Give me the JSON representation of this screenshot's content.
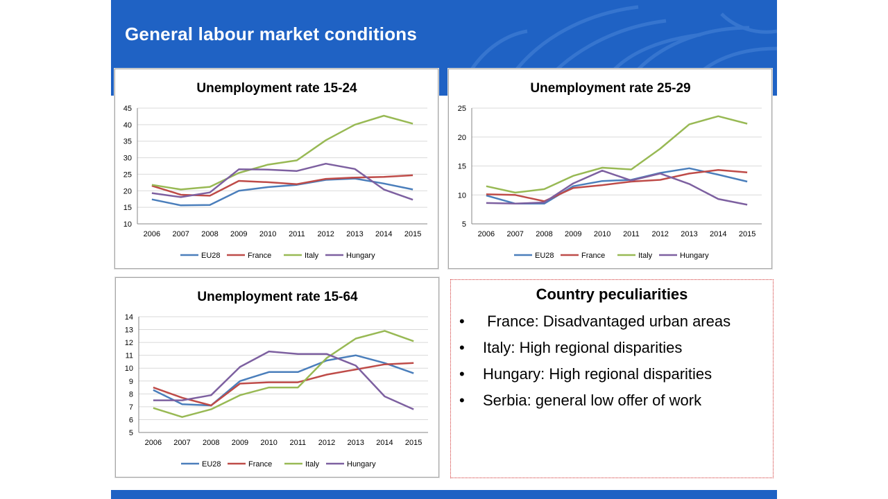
{
  "slide": {
    "title": "General labour market conditions"
  },
  "colors": {
    "header": "#1f62c4",
    "EU28": "#4a7ebb",
    "France": "#be4b48",
    "Italy": "#98b954",
    "Hungary": "#7d60a0"
  },
  "legend": [
    "EU28",
    "France",
    "Italy",
    "Hungary"
  ],
  "chart_data": [
    {
      "type": "line",
      "title": "Unemployment rate 15-24",
      "x": [
        "2006",
        "2007",
        "2008",
        "2009",
        "2010",
        "2011",
        "2012",
        "2013",
        "2014",
        "2015"
      ],
      "ylim": [
        10,
        45
      ],
      "yticks": [
        10,
        15,
        20,
        25,
        30,
        35,
        40,
        45
      ],
      "grid": true,
      "legend_position": "bottom",
      "series": [
        {
          "name": "EU28",
          "values": [
            17.4,
            15.6,
            15.7,
            20.0,
            21.1,
            21.8,
            23.3,
            23.7,
            22.2,
            20.4
          ]
        },
        {
          "name": "France",
          "values": [
            21.5,
            18.8,
            18.5,
            23.0,
            22.6,
            22.0,
            23.6,
            24.0,
            24.2,
            24.7
          ]
        },
        {
          "name": "Italy",
          "values": [
            21.8,
            20.4,
            21.2,
            25.4,
            27.9,
            29.2,
            35.3,
            40.0,
            42.7,
            40.3
          ]
        },
        {
          "name": "Hungary",
          "values": [
            19.3,
            18.1,
            19.5,
            26.5,
            26.4,
            26.0,
            28.2,
            26.6,
            20.4,
            17.3
          ]
        }
      ]
    },
    {
      "type": "line",
      "title": "Unemployment rate 25-29",
      "x": [
        "2006",
        "2007",
        "2008",
        "2009",
        "2010",
        "2011",
        "2012",
        "2013",
        "2014",
        "2015"
      ],
      "ylim": [
        5,
        25
      ],
      "yticks": [
        5,
        10,
        15,
        20,
        25
      ],
      "grid": true,
      "legend_position": "bottom",
      "series": [
        {
          "name": "EU28",
          "values": [
            9.9,
            8.5,
            8.5,
            11.5,
            12.4,
            12.6,
            13.8,
            14.6,
            13.5,
            12.3
          ]
        },
        {
          "name": "France",
          "values": [
            10.1,
            10.0,
            8.9,
            11.2,
            11.7,
            12.3,
            12.6,
            13.7,
            14.3,
            13.9
          ]
        },
        {
          "name": "Italy",
          "values": [
            11.5,
            10.4,
            11.0,
            13.3,
            14.7,
            14.4,
            18.0,
            22.2,
            23.6,
            22.3
          ]
        },
        {
          "name": "Hungary",
          "values": [
            8.6,
            8.5,
            8.7,
            12.0,
            14.2,
            12.5,
            13.7,
            11.9,
            9.3,
            8.3
          ]
        }
      ]
    },
    {
      "type": "line",
      "title": "Unemployment rate 15-64",
      "x": [
        "2006",
        "2007",
        "2008",
        "2009",
        "2010",
        "2011",
        "2012",
        "2013",
        "2014",
        "2015"
      ],
      "ylim": [
        5,
        14
      ],
      "yticks": [
        5,
        6,
        7,
        8,
        9,
        10,
        11,
        12,
        13,
        14
      ],
      "grid": true,
      "legend_position": "bottom",
      "series": [
        {
          "name": "EU28",
          "values": [
            8.3,
            7.2,
            7.1,
            9.0,
            9.7,
            9.7,
            10.6,
            11.0,
            10.4,
            9.6
          ]
        },
        {
          "name": "France",
          "values": [
            8.5,
            7.7,
            7.1,
            8.8,
            8.9,
            8.9,
            9.5,
            9.9,
            10.3,
            10.4
          ]
        },
        {
          "name": "Italy",
          "values": [
            6.9,
            6.2,
            6.8,
            7.9,
            8.5,
            8.5,
            10.8,
            12.3,
            12.9,
            12.1
          ]
        },
        {
          "name": "Hungary",
          "values": [
            7.5,
            7.5,
            7.9,
            10.1,
            11.3,
            11.1,
            11.1,
            10.2,
            7.8,
            6.8
          ]
        }
      ]
    }
  ],
  "peculiarities": {
    "title": "Country peculiarities",
    "items": [
      " France: Disadvantaged urban areas",
      "Italy: High regional disparities",
      "Hungary: High regional disparities",
      "Serbia: general low offer of work"
    ]
  }
}
